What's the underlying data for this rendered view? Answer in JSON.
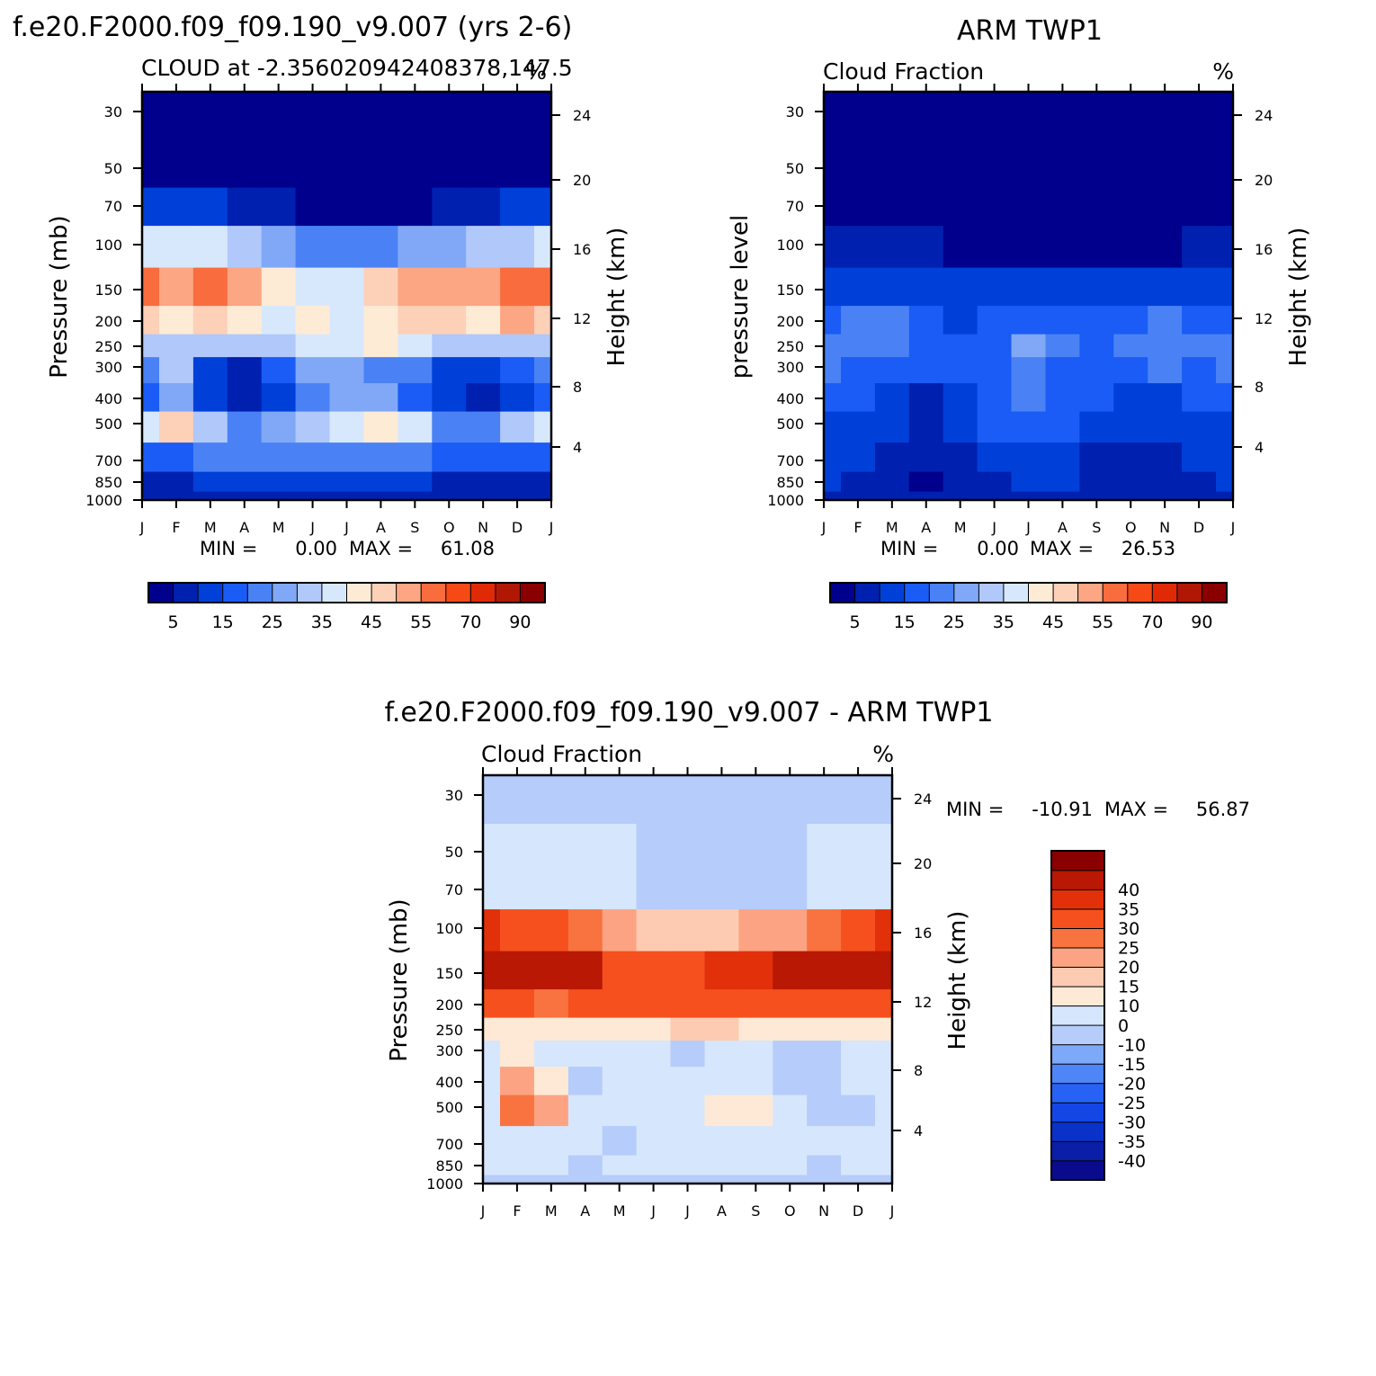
{
  "figure": {
    "title_left": "f.e20.F2000.f09_f09.190_v9.007 (yrs 2-6)",
    "title_right": "ARM TWP1",
    "title_bottom": "f.e20.F2000.f09_f09.190_v9.007 - ARM TWP1"
  },
  "colors": {
    "abs_palette": [
      "#00008c",
      "#0020b0",
      "#0040d8",
      "#1a5cf5",
      "#4a82f5",
      "#80a8f7",
      "#b0c8fa",
      "#d8e8fc",
      "#fdebd6",
      "#fdd0b8",
      "#fca683",
      "#f86c3e",
      "#f54a16",
      "#e02a06",
      "#b01805",
      "#8a0000"
    ],
    "diff_palette": [
      "#0a0a8c",
      "#0a1ea8",
      "#0a32c8",
      "#1446e6",
      "#2862f5",
      "#4f86f7",
      "#7ea8f8",
      "#b6ccfa",
      "#d6e6fc",
      "#fde9d6",
      "#fdcbb1",
      "#fca383",
      "#f8733f",
      "#f5501d",
      "#e1300a",
      "#b81804",
      "#8a0000"
    ]
  },
  "chart_data": [
    {
      "type": "heatmap",
      "subtitle": "CLOUD at -2.356020942408378,147.5",
      "units": "%",
      "xlabel": "",
      "ylabel": "Pressure (mb)",
      "ylabel_right": "Height (km)",
      "x": [
        "J",
        "F",
        "M",
        "A",
        "M",
        "J",
        "J",
        "A",
        "S",
        "O",
        "N",
        "D",
        "J"
      ],
      "y_levels": [
        1000,
        850,
        700,
        500,
        400,
        300,
        250,
        200,
        150,
        100,
        70,
        50,
        30
      ],
      "y_ticks_left": [
        "30",
        "50",
        "70",
        "100",
        "150",
        "200",
        "250",
        "300",
        "400",
        "500",
        "700",
        "850",
        "1000"
      ],
      "y_ticks_right": [
        "24",
        "20",
        "16",
        "12",
        "8",
        "4"
      ],
      "z": [
        [
          5,
          5,
          6,
          7,
          8,
          8,
          8,
          8,
          7,
          6,
          5,
          5,
          5
        ],
        [
          8,
          9,
          10,
          10,
          10,
          11,
          11,
          11,
          10,
          9,
          8,
          8,
          8
        ],
        [
          18,
          16,
          20,
          22,
          21,
          22,
          22,
          22,
          21,
          19,
          16,
          18,
          18
        ],
        [
          36,
          46,
          34,
          24,
          28,
          32,
          38,
          42,
          35,
          24,
          20,
          34,
          36
        ],
        [
          16,
          26,
          12,
          6,
          14,
          22,
          28,
          26,
          18,
          10,
          6,
          12,
          16
        ],
        [
          20,
          30,
          12,
          8,
          18,
          28,
          26,
          24,
          20,
          14,
          10,
          16,
          20
        ],
        [
          30,
          34,
          30,
          30,
          34,
          36,
          38,
          40,
          36,
          32,
          30,
          32,
          30
        ],
        [
          48,
          42,
          46,
          40,
          36,
          44,
          38,
          44,
          46,
          46,
          44,
          50,
          48
        ],
        [
          56,
          52,
          58,
          54,
          44,
          36,
          36,
          46,
          50,
          50,
          52,
          58,
          56
        ],
        [
          38,
          36,
          36,
          34,
          28,
          24,
          22,
          24,
          26,
          28,
          30,
          34,
          38
        ],
        [
          12,
          10,
          10,
          8,
          6,
          4,
          3,
          4,
          4,
          6,
          8,
          10,
          12
        ],
        [
          2,
          2,
          2,
          2,
          2,
          1,
          1,
          1,
          1,
          1,
          2,
          2,
          2
        ],
        [
          1,
          1,
          1,
          1,
          1,
          1,
          1,
          1,
          1,
          1,
          1,
          1,
          1
        ]
      ],
      "min_label": "MIN =",
      "min_value": "0.00",
      "max_label": "MAX =",
      "max_value": "61.08",
      "colorbar_levels": [
        0,
        5,
        10,
        15,
        20,
        25,
        30,
        35,
        40,
        45,
        50,
        55,
        60,
        70,
        80,
        90,
        100
      ],
      "colorbar_tick_labels": [
        "5",
        "15",
        "25",
        "35",
        "45",
        "55",
        "70",
        "90"
      ]
    },
    {
      "type": "heatmap",
      "subtitle": "Cloud Fraction",
      "units": "%",
      "xlabel": "",
      "ylabel": "pressure level",
      "ylabel_right": "Height (km)",
      "x": [
        "J",
        "F",
        "M",
        "A",
        "M",
        "J",
        "J",
        "A",
        "S",
        "O",
        "N",
        "D",
        "J"
      ],
      "y_levels": [
        1000,
        850,
        700,
        500,
        400,
        300,
        250,
        200,
        150,
        100,
        70,
        50,
        30
      ],
      "y_ticks_left": [
        "30",
        "50",
        "70",
        "100",
        "150",
        "200",
        "250",
        "300",
        "400",
        "500",
        "700",
        "850",
        "1000"
      ],
      "y_ticks_right": [
        "24",
        "20",
        "16",
        "12",
        "8",
        "4"
      ],
      "z": [
        [
          7,
          6,
          6,
          6,
          6,
          6,
          6,
          6,
          6,
          6,
          6,
          6,
          7
        ],
        [
          10,
          8,
          6,
          4,
          6,
          9,
          10,
          10,
          9,
          6,
          6,
          8,
          10
        ],
        [
          11,
          10,
          8,
          6,
          8,
          10,
          12,
          11,
          9,
          6,
          8,
          10,
          11
        ],
        [
          14,
          13,
          12,
          8,
          12,
          15,
          18,
          16,
          14,
          12,
          14,
          14,
          14
        ],
        [
          17,
          15,
          14,
          9,
          13,
          17,
          20,
          18,
          15,
          13,
          10,
          15,
          17
        ],
        [
          20,
          18,
          17,
          15,
          16,
          18,
          22,
          19,
          17,
          18,
          20,
          19,
          20
        ],
        [
          22,
          24,
          23,
          19,
          16,
          18,
          25,
          21,
          18,
          21,
          24,
          21,
          22
        ],
        [
          18,
          21,
          22,
          17,
          14,
          16,
          19,
          18,
          16,
          17,
          20,
          17,
          18
        ],
        [
          12,
          13,
          13,
          12,
          11,
          10,
          10,
          10,
          11,
          12,
          12,
          12,
          12
        ],
        [
          6,
          6,
          6,
          5,
          4,
          3,
          3,
          3,
          3,
          4,
          4,
          5,
          6
        ],
        [
          2,
          2,
          2,
          2,
          2,
          2,
          2,
          2,
          2,
          2,
          2,
          2,
          2
        ],
        [
          1,
          1,
          1,
          1,
          1,
          1,
          1,
          1,
          1,
          1,
          1,
          1,
          1
        ],
        [
          1,
          1,
          1,
          1,
          1,
          1,
          1,
          1,
          1,
          1,
          1,
          1,
          1
        ]
      ],
      "min_label": "MIN =",
      "min_value": "0.00",
      "max_label": "MAX =",
      "max_value": "26.53",
      "colorbar_levels": [
        0,
        5,
        10,
        15,
        20,
        25,
        30,
        35,
        40,
        45,
        50,
        55,
        60,
        70,
        80,
        90,
        100
      ],
      "colorbar_tick_labels": [
        "5",
        "15",
        "25",
        "35",
        "45",
        "55",
        "70",
        "90"
      ]
    },
    {
      "type": "heatmap",
      "subtitle": "Cloud Fraction",
      "units": "%",
      "xlabel": "",
      "ylabel": "Pressure (mb)",
      "ylabel_right": "Height (km)",
      "x": [
        "J",
        "F",
        "M",
        "A",
        "M",
        "J",
        "J",
        "A",
        "S",
        "O",
        "N",
        "D",
        "J"
      ],
      "y_levels": [
        1000,
        850,
        700,
        500,
        400,
        300,
        250,
        200,
        150,
        100,
        70,
        50,
        30
      ],
      "y_ticks_left": [
        "30",
        "50",
        "70",
        "100",
        "150",
        "200",
        "250",
        "300",
        "400",
        "500",
        "700",
        "850",
        "1000"
      ],
      "y_ticks_right": [
        "24",
        "20",
        "16",
        "12",
        "8",
        "4"
      ],
      "z": [
        [
          -2,
          -2,
          -1,
          -1,
          -1,
          -1,
          -2,
          -1,
          -1,
          -1,
          -1,
          -1,
          -2
        ],
        [
          2,
          2,
          2,
          -3,
          2,
          2,
          2,
          2,
          2,
          2,
          -3,
          2,
          2
        ],
        [
          3,
          4,
          4,
          2,
          -2,
          2,
          2,
          4,
          4,
          4,
          2,
          2,
          3
        ],
        [
          6,
          26,
          20,
          6,
          4,
          8,
          6,
          10,
          10,
          6,
          -2,
          -2,
          6
        ],
        [
          4,
          20,
          12,
          -2,
          4,
          6,
          4,
          6,
          4,
          -2,
          -5,
          4,
          4
        ],
        [
          4,
          10,
          8,
          4,
          6,
          6,
          -2,
          6,
          4,
          -2,
          -2,
          4,
          4
        ],
        [
          12,
          12,
          12,
          12,
          14,
          14,
          16,
          16,
          12,
          12,
          12,
          12,
          12
        ],
        [
          30,
          30,
          28,
          30,
          32,
          30,
          30,
          30,
          30,
          32,
          34,
          34,
          30
        ],
        [
          45,
          45,
          45,
          42,
          34,
          30,
          30,
          36,
          38,
          40,
          42,
          46,
          45
        ],
        [
          36,
          34,
          30,
          26,
          22,
          18,
          16,
          18,
          20,
          22,
          26,
          30,
          36
        ],
        [
          4,
          4,
          4,
          4,
          2,
          -2,
          -2,
          -2,
          -2,
          -2,
          2,
          4,
          4
        ],
        [
          2,
          2,
          2,
          2,
          2,
          -2,
          -2,
          -2,
          -2,
          -2,
          2,
          2,
          2
        ],
        [
          -3,
          -3,
          -3,
          -3,
          -3,
          -3,
          -3,
          -3,
          -3,
          -3,
          -3,
          -3,
          -3
        ]
      ],
      "min_label": "MIN =",
      "min_value": "-10.91",
      "max_label": "MAX =",
      "max_value": "56.87",
      "colorbar_levels": [
        -50,
        -40,
        -35,
        -30,
        -25,
        -20,
        -15,
        -10,
        0,
        10,
        15,
        20,
        25,
        30,
        35,
        40,
        50
      ],
      "colorbar_tick_labels": [
        "40",
        "35",
        "30",
        "25",
        "20",
        "15",
        "10",
        "0",
        "-10",
        "-15",
        "-20",
        "-25",
        "-30",
        "-35",
        "-40"
      ]
    }
  ]
}
